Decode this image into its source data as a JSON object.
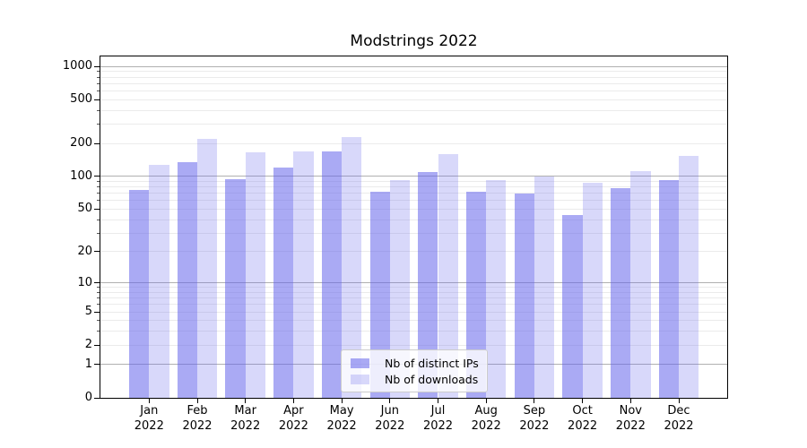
{
  "title": "Modstrings 2022",
  "colors": {
    "distinct_ips": "rgba(100,100,235,0.55)",
    "downloads": "rgba(100,100,235,0.25)",
    "grid_major": "#b0b0b0",
    "grid_minor": "#ebebeb",
    "axis": "#000000",
    "legend_border": "#cccccc",
    "legend_background": "rgba(255,255,255,0.8)"
  },
  "legend": {
    "items": [
      "Nb of distinct IPs",
      "Nb of downloads"
    ],
    "position": "lower center"
  },
  "chart_data": {
    "type": "bar",
    "title": "Modstrings 2022",
    "categories": [
      "Jan",
      "Feb",
      "Mar",
      "Apr",
      "May",
      "Jun",
      "Jul",
      "Aug",
      "Sep",
      "Oct",
      "Nov",
      "Dec"
    ],
    "year_label": "2022",
    "x_tick_labels": [
      "Jan 2022",
      "Feb 2022",
      "Mar 2022",
      "Apr 2022",
      "May 2022",
      "Jun 2022",
      "Jul 2022",
      "Aug 2022",
      "Sep 2022",
      "Oct 2022",
      "Nov 2022",
      "Dec 2022"
    ],
    "series": [
      {
        "name": "Nb of distinct IPs",
        "color_key": "distinct_ips",
        "values": [
          75,
          135,
          94,
          120,
          168,
          72,
          110,
          72,
          70,
          44,
          78,
          93
        ]
      },
      {
        "name": "Nb of downloads",
        "color_key": "downloads",
        "values": [
          127,
          218,
          165,
          168,
          230,
          92,
          161,
          93,
          100,
          88,
          112,
          155
        ]
      }
    ],
    "xlabel": "",
    "ylabel": "",
    "y_scale": "log10(1+y)",
    "y_ticks": [
      0,
      1,
      2,
      5,
      10,
      20,
      50,
      100,
      200,
      500,
      1000
    ],
    "y_major_gridlines": [
      1,
      10,
      100,
      1000
    ],
    "ylim": [
      0,
      1230
    ],
    "grid": true,
    "legend_position": "lower center"
  }
}
